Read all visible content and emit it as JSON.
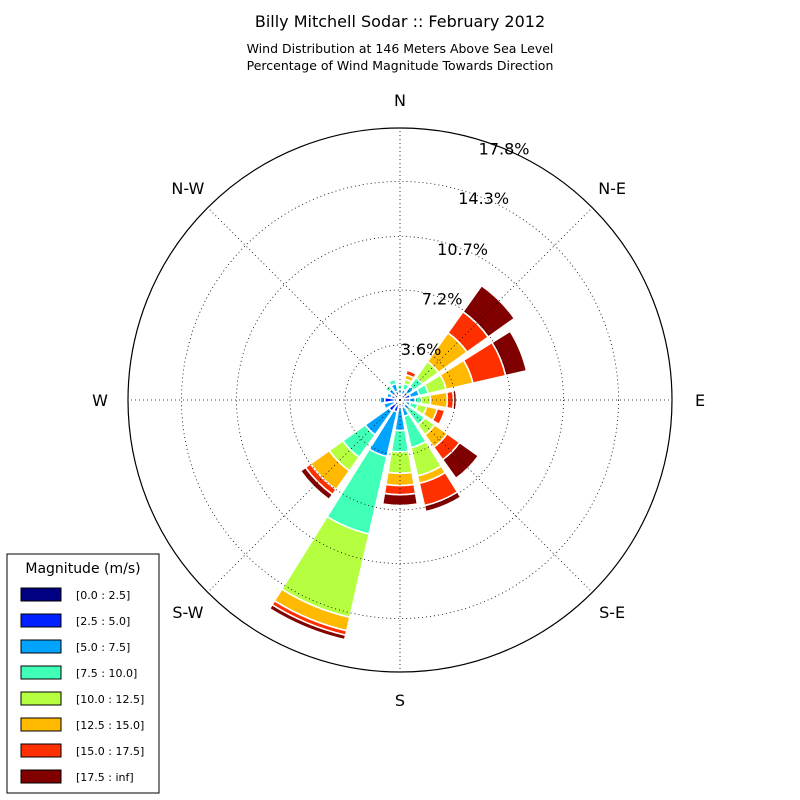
{
  "header": {
    "title": "Billy Mitchell Sodar :: February 2012",
    "subtitle1": "Wind Distribution at 146 Meters Above Sea Level",
    "subtitle2": "Percentage of Wind Magnitude Towards Direction"
  },
  "legend": {
    "title": "Magnitude (m/s)",
    "placement": "bottom-left"
  },
  "chart_data": {
    "type": "windrose",
    "title": "Billy Mitchell Sodar :: February 2012",
    "radial_unit": "%",
    "radial_max": 17.8,
    "radial_ticks": [
      3.6,
      7.2,
      10.7,
      14.3,
      17.8
    ],
    "radial_tick_labels": [
      "3.6%",
      "7.2%",
      "10.7%",
      "14.3%",
      "17.8%"
    ],
    "grid": true,
    "direction_labels": [
      {
        "label": "N",
        "angle": 0
      },
      {
        "label": "N-E",
        "angle": 45
      },
      {
        "label": "E",
        "angle": 90
      },
      {
        "label": "S-E",
        "angle": 135
      },
      {
        "label": "S",
        "angle": 180
      },
      {
        "label": "S-W",
        "angle": 225
      },
      {
        "label": "W",
        "angle": 270
      },
      {
        "label": "N-W",
        "angle": 315
      }
    ],
    "bins": [
      "[0.0 : 2.5]",
      "[2.5 : 5.0]",
      "[5.0 : 7.5]",
      "[7.5 : 10.0]",
      "[10.0 : 12.5]",
      "[12.5 : 15.0]",
      "[15.0 : 17.5]",
      "[17.5 : inf]"
    ],
    "bin_colors": [
      "#000080",
      "#0020ff",
      "#00a4ff",
      "#40ffb7",
      "#b6ff40",
      "#ffb900",
      "#ff3000",
      "#800000"
    ],
    "sectors": [
      {
        "direction": 0,
        "values": [
          0.1,
          0.3,
          0.3,
          0.3,
          0.1,
          0.0,
          0.0,
          0.0
        ]
      },
      {
        "direction": 22.5,
        "values": [
          0.1,
          0.3,
          0.3,
          0.4,
          0.3,
          0.3,
          0.3,
          0.0
        ]
      },
      {
        "direction": 45,
        "values": [
          0.2,
          0.4,
          0.5,
          0.7,
          1.3,
          2.3,
          1.7,
          2.1
        ]
      },
      {
        "direction": 67.5,
        "values": [
          0.2,
          0.5,
          0.6,
          0.6,
          1.2,
          1.8,
          2.2,
          1.4
        ]
      },
      {
        "direction": 90,
        "values": [
          0.2,
          0.4,
          0.4,
          0.4,
          0.6,
          1.1,
          0.4,
          0.2
        ]
      },
      {
        "direction": 112.5,
        "values": [
          0.1,
          0.3,
          0.3,
          0.5,
          0.6,
          0.7,
          0.5,
          0.0
        ]
      },
      {
        "direction": 135,
        "values": [
          0.1,
          0.3,
          0.4,
          1.2,
          0.8,
          1.0,
          1.0,
          1.5
        ]
      },
      {
        "direction": 157.5,
        "values": [
          0.1,
          0.4,
          0.6,
          2.1,
          1.9,
          0.5,
          1.5,
          0.4
        ]
      },
      {
        "direction": 180,
        "values": [
          0.1,
          0.4,
          1.5,
          1.4,
          1.4,
          0.8,
          0.6,
          0.7
        ]
      },
      {
        "direction": 202.5,
        "values": [
          0.2,
          0.6,
          3.0,
          5.2,
          5.6,
          0.9,
          0.3,
          0.3
        ]
      },
      {
        "direction": 225,
        "values": [
          0.2,
          0.7,
          1.9,
          1.8,
          1.1,
          1.5,
          0.4,
          0.4
        ]
      },
      {
        "direction": 247.5,
        "values": [
          0.1,
          0.3,
          0.7,
          0.1,
          0.1,
          0.0,
          0.0,
          0.0
        ]
      },
      {
        "direction": 270,
        "values": [
          0.1,
          0.9,
          0.3,
          0.0,
          0.0,
          0.0,
          0.0,
          0.0
        ]
      },
      {
        "direction": 292.5,
        "values": [
          0.1,
          0.5,
          0.3,
          0.0,
          0.0,
          0.0,
          0.0,
          0.0
        ]
      },
      {
        "direction": 315,
        "values": [
          0.1,
          0.4,
          0.4,
          0.3,
          0.1,
          0.0,
          0.0,
          0.0
        ]
      },
      {
        "direction": 337.5,
        "values": [
          0.1,
          0.5,
          0.5,
          0.3,
          0.0,
          0.0,
          0.0,
          0.0
        ]
      }
    ]
  }
}
